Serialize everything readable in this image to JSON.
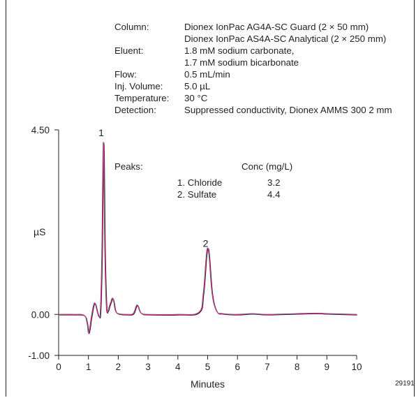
{
  "conditions": [
    {
      "label": "Column:",
      "lines": [
        "Dionex IonPac AG4A-SC Guard (2 × 50 mm)",
        "Dionex IonPac AS4A-SC Analytical (2 × 250 mm)"
      ]
    },
    {
      "label": "Eluent:",
      "lines": [
        "1.8 mM sodium carbonate,",
        "1.7 mM sodium bicarbonate"
      ]
    },
    {
      "label": "Flow:",
      "lines": [
        "0.5 mL/min"
      ]
    },
    {
      "label": "Inj. Volume:",
      "lines": [
        "5.0 µL"
      ]
    },
    {
      "label": "Temperature:",
      "lines": [
        "30 °C"
      ]
    },
    {
      "label": "Detection:",
      "lines": [
        "Suppressed conductivity, Dionex AMMS 300 2 mm"
      ]
    }
  ],
  "peaks_table": {
    "label": "Peaks:",
    "conc_header": "Conc (mg/L)",
    "rows": [
      {
        "name": "1. Chloride",
        "conc": "3.2"
      },
      {
        "name": "2. Sulfate",
        "conc": "4.4"
      }
    ]
  },
  "figure_id": "29191",
  "chart_data": {
    "type": "line",
    "xlabel": "Minutes",
    "ylabel": "µS",
    "xlim": [
      0,
      10
    ],
    "ylim": [
      -1.0,
      4.5
    ],
    "x_ticks": [
      "0",
      "1",
      "2",
      "3",
      "4",
      "5",
      "6",
      "7",
      "8",
      "9",
      "10"
    ],
    "y_ticks": [
      "4.50",
      "0.00",
      "-1.00"
    ],
    "y_tick_values": [
      4.5,
      0.0,
      -1.0
    ],
    "peak_labels": [
      {
        "text": "1",
        "x": 1.5,
        "y": 4.35
      },
      {
        "text": "2",
        "x": 5.0,
        "y": 1.65
      }
    ],
    "series": [
      {
        "color": "#b8478f",
        "x": [
          0,
          0.5,
          0.85,
          0.95,
          1.0,
          1.05,
          1.1,
          1.2,
          1.3,
          1.35,
          1.4,
          1.45,
          1.5,
          1.55,
          1.6,
          1.65,
          1.7,
          1.75,
          1.8,
          1.85,
          1.9,
          2.0,
          2.3,
          2.5,
          2.6,
          2.65,
          2.72,
          2.8,
          3.0,
          4.0,
          4.7,
          4.85,
          4.95,
          5.0,
          5.05,
          5.15,
          5.3,
          5.5,
          6.0,
          6.5,
          7.0,
          8.0,
          8.7,
          9.0,
          10.0
        ],
        "y": [
          0.0,
          0.0,
          -0.02,
          -0.2,
          -0.45,
          -0.3,
          -0.05,
          0.28,
          0.05,
          -0.05,
          0.1,
          1.5,
          4.2,
          1.5,
          0.2,
          0.08,
          0.2,
          0.3,
          0.4,
          0.3,
          0.1,
          0.02,
          0.0,
          0.02,
          0.2,
          0.22,
          0.08,
          0.02,
          0.0,
          0.0,
          0.05,
          0.5,
          1.4,
          1.62,
          1.4,
          0.5,
          0.08,
          0.02,
          0.0,
          0.02,
          0.0,
          0.02,
          0.03,
          0.02,
          0.0
        ]
      }
    ]
  }
}
